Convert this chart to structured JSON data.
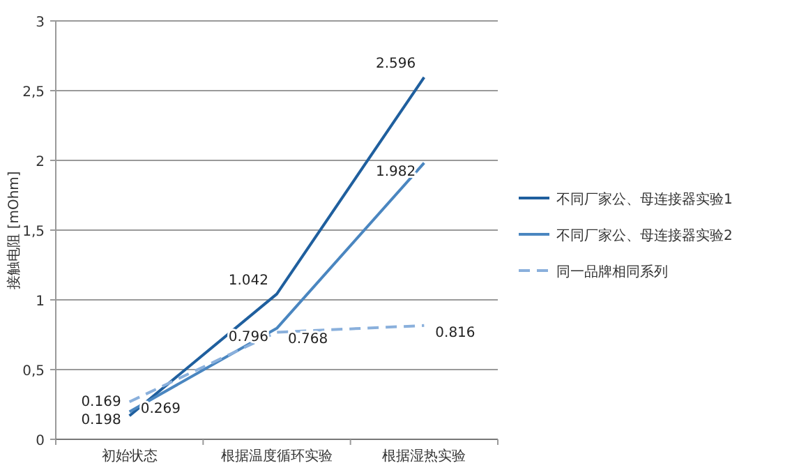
{
  "chart_data": {
    "type": "line",
    "ylabel": "接触电阻 [mOhm]",
    "categories": [
      "初始状态",
      "根据温度循环实验",
      "根据湿热实验"
    ],
    "series": [
      {
        "name": "不同厂家公、母连接器实验1",
        "color": "#1f5f9e",
        "values": [
          0.169,
          1.042,
          2.596
        ]
      },
      {
        "name": "不同厂家公、母连接器实验2",
        "color": "#4a86c0",
        "values": [
          0.198,
          0.796,
          1.982
        ]
      },
      {
        "name": "同一品牌相同系列",
        "color": "#8ab0dc",
        "values": [
          0.269,
          0.768,
          0.816
        ],
        "line_style": "dashed"
      }
    ],
    "ylim": [
      0,
      3
    ],
    "yticks": [
      0,
      {
        "value": 0.5,
        "label": "0,5"
      },
      1,
      {
        "value": 1.5,
        "label": "1,5"
      },
      2,
      {
        "value": 2.5,
        "label": "2,5"
      },
      3
    ],
    "grid": "y",
    "legend": "right",
    "data_labels": true,
    "marker": "none"
  }
}
